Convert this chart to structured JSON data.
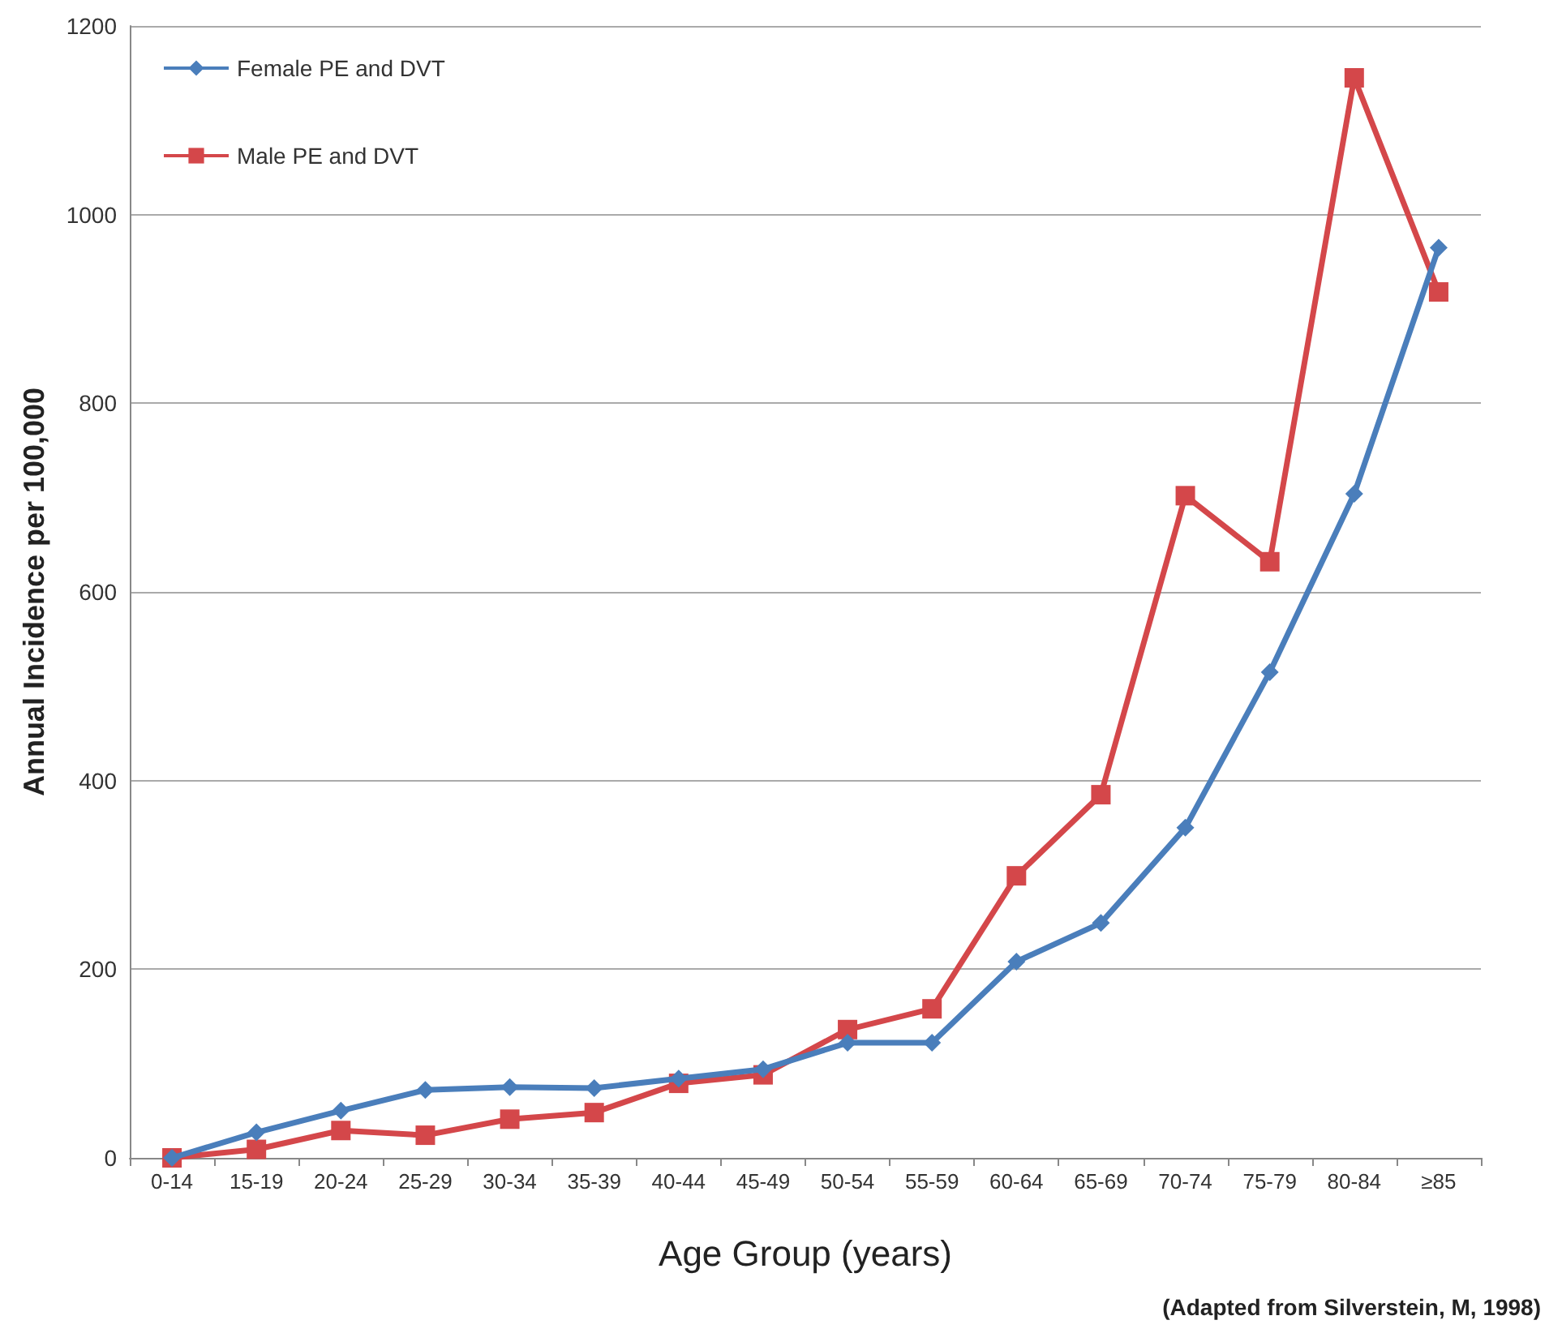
{
  "chart_data": {
    "type": "line",
    "xlabel": "Age Group (years)",
    "ylabel": "Annual Incidence per 100,000",
    "categories": [
      "0-14",
      "15-19",
      "20-24",
      "25-29",
      "30-34",
      "35-39",
      "40-44",
      "45-49",
      "50-54",
      "55-59",
      "60-64",
      "65-69",
      "70-74",
      "75-79",
      "80-84",
      "≥85"
    ],
    "series": [
      {
        "name": "Female PE and DVT",
        "color": "#4a7ebb",
        "marker": "diamond",
        "values": [
          0,
          27,
          50,
          72,
          75,
          74,
          84,
          94,
          122,
          122,
          208,
          249,
          350,
          515,
          704,
          965
        ]
      },
      {
        "name": "Male PE and DVT",
        "color": "#d4474a",
        "marker": "square",
        "values": [
          0,
          9,
          29,
          24,
          41,
          48,
          79,
          88,
          136,
          158,
          299,
          385,
          702,
          632,
          1145,
          918
        ]
      }
    ],
    "ylim": [
      0,
      1200
    ],
    "yticks": [
      0,
      200,
      400,
      600,
      800,
      1000,
      1200
    ],
    "grid": "y",
    "legend": "top left",
    "line_style": "solid",
    "annotations": [
      "(Adapted from Silverstein, M, 1998)"
    ]
  }
}
